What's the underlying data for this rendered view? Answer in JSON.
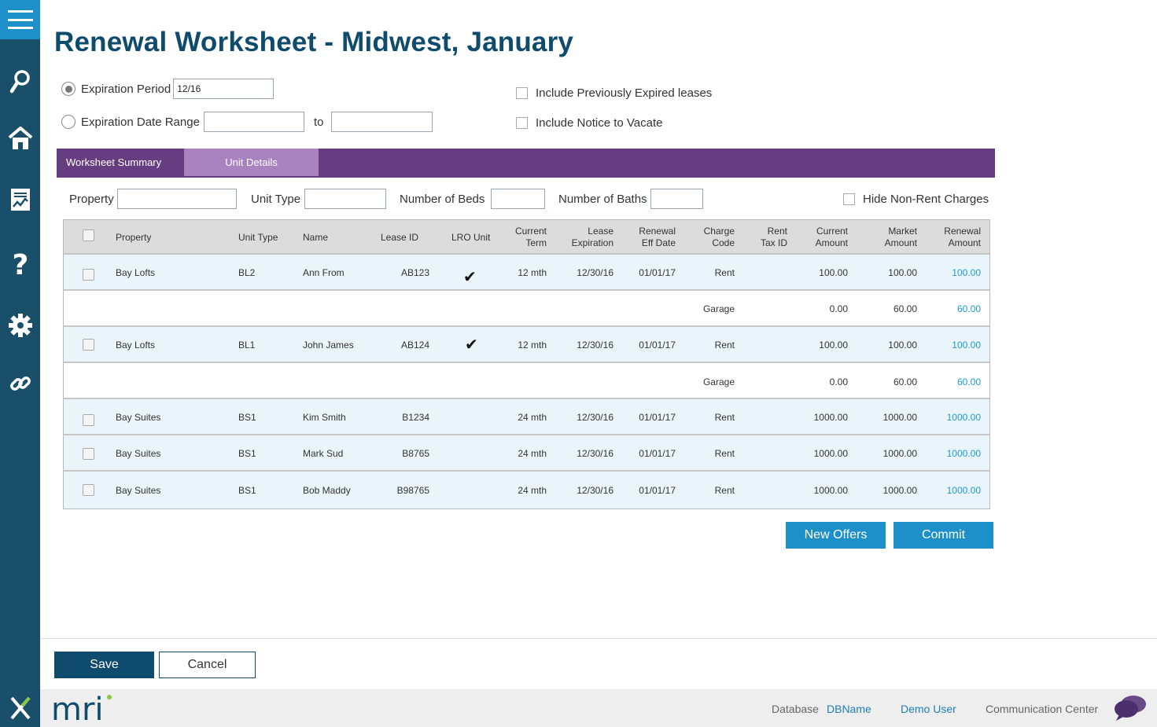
{
  "page": {
    "title": "Renewal Worksheet - Midwest, January"
  },
  "filters": {
    "expiration_period_label": "Expiration Period",
    "expiration_period_value": "12/16",
    "expiration_date_range_label": "Expiration Date Range",
    "range_to_label": "to",
    "include_previously_expired_label": "Include Previously Expired leases",
    "include_notice_to_vacate_label": "Include Notice to Vacate"
  },
  "tabs": [
    {
      "label": "Worksheet Summary"
    },
    {
      "label": "Unit Details"
    }
  ],
  "unit_filters": {
    "property_label": "Property",
    "unit_type_label": "Unit Type",
    "beds_label": "Number of Beds",
    "baths_label": "Number of Baths",
    "hide_non_rent_label": "Hide Non-Rent Charges"
  },
  "table": {
    "headers": {
      "property": "Property",
      "unit_type": "Unit Type",
      "name": "Name",
      "lease_id": "Lease ID",
      "lro_unit": "LRO Unit",
      "current_term_1": "Current",
      "current_term_2": "Term",
      "lease_exp_1": "Lease",
      "lease_exp_2": "Expiration",
      "renewal_eff_1": "Renewal",
      "renewal_eff_2": "Eff Date",
      "charge_code_1": "Charge",
      "charge_code_2": "Code",
      "rent_tax_1": "Rent",
      "rent_tax_2": "Tax ID",
      "current_amt_1": "Current",
      "current_amt_2": "Amount",
      "market_amt_1": "Market",
      "market_amt_2": "Amount",
      "renewal_amt_1": "Renewal",
      "renewal_amt_2": "Amount"
    },
    "rows": [
      {
        "property": "Bay Lofts",
        "unit_type": "BL2",
        "name": "Ann From",
        "lease_id": "AB123",
        "lro": "✔",
        "term": "12 mth",
        "expiration": "12/30/16",
        "eff_date": "01/01/17",
        "charge": "Rent",
        "current": "100.00",
        "market": "100.00",
        "renewal": "100.00"
      },
      {
        "charge": "Garage",
        "current": "0.00",
        "market": "60.00",
        "renewal": "60.00"
      },
      {
        "property": "Bay Lofts",
        "unit_type": "BL1",
        "name": "John James",
        "lease_id": "AB124",
        "lro": "✔",
        "term": "12 mth",
        "expiration": "12/30/16",
        "eff_date": "01/01/17",
        "charge": "Rent",
        "current": "100.00",
        "market": "100.00",
        "renewal": "100.00"
      },
      {
        "charge": "Garage",
        "current": "0.00",
        "market": "60.00",
        "renewal": "60.00"
      },
      {
        "property": "Bay Suites",
        "unit_type": "BS1",
        "name": "Kim Smith",
        "lease_id": "B1234",
        "term": "24 mth",
        "expiration": "12/30/16",
        "eff_date": "01/01/17",
        "charge": "Rent",
        "current": "1000.00",
        "market": "1000.00",
        "renewal": "1000.00"
      },
      {
        "property": "Bay Suites",
        "unit_type": "BS1",
        "name": "Mark Sud",
        "lease_id": "B8765",
        "term": "24 mth",
        "expiration": "12/30/16",
        "eff_date": "01/01/17",
        "charge": "Rent",
        "current": "1000.00",
        "market": "1000.00",
        "renewal": "1000.00"
      },
      {
        "property": "Bay Suites",
        "unit_type": "BS1",
        "name": "Bob Maddy",
        "lease_id": "B98765",
        "term": "24 mth",
        "expiration": "12/30/16",
        "eff_date": "01/01/17",
        "charge": "Rent",
        "current": "1000.00",
        "market": "1000.00",
        "renewal": "1000.00"
      }
    ]
  },
  "actions": {
    "new_offers": "New Offers",
    "commit": "Commit",
    "save": "Save",
    "cancel": "Cancel"
  },
  "footer": {
    "database_label": "Database",
    "database_name": "DBName",
    "user": "Demo User",
    "communication_center": "Communication Center",
    "logo_text": "mri"
  },
  "sidebar_icons": [
    "hamburger-icon",
    "search-icon",
    "home-icon",
    "report-icon",
    "help-icon",
    "gear-icon",
    "link-icon"
  ],
  "colors": {
    "sidebar": "#1a4f6a",
    "accent_blue": "#1d8fc9",
    "title_navy": "#0f4b6c",
    "tab_purple": "#663d80",
    "tab_active": "#a883c0",
    "row_tint": "#eaf4fb",
    "renewal_amount": "#1d9bd1"
  }
}
